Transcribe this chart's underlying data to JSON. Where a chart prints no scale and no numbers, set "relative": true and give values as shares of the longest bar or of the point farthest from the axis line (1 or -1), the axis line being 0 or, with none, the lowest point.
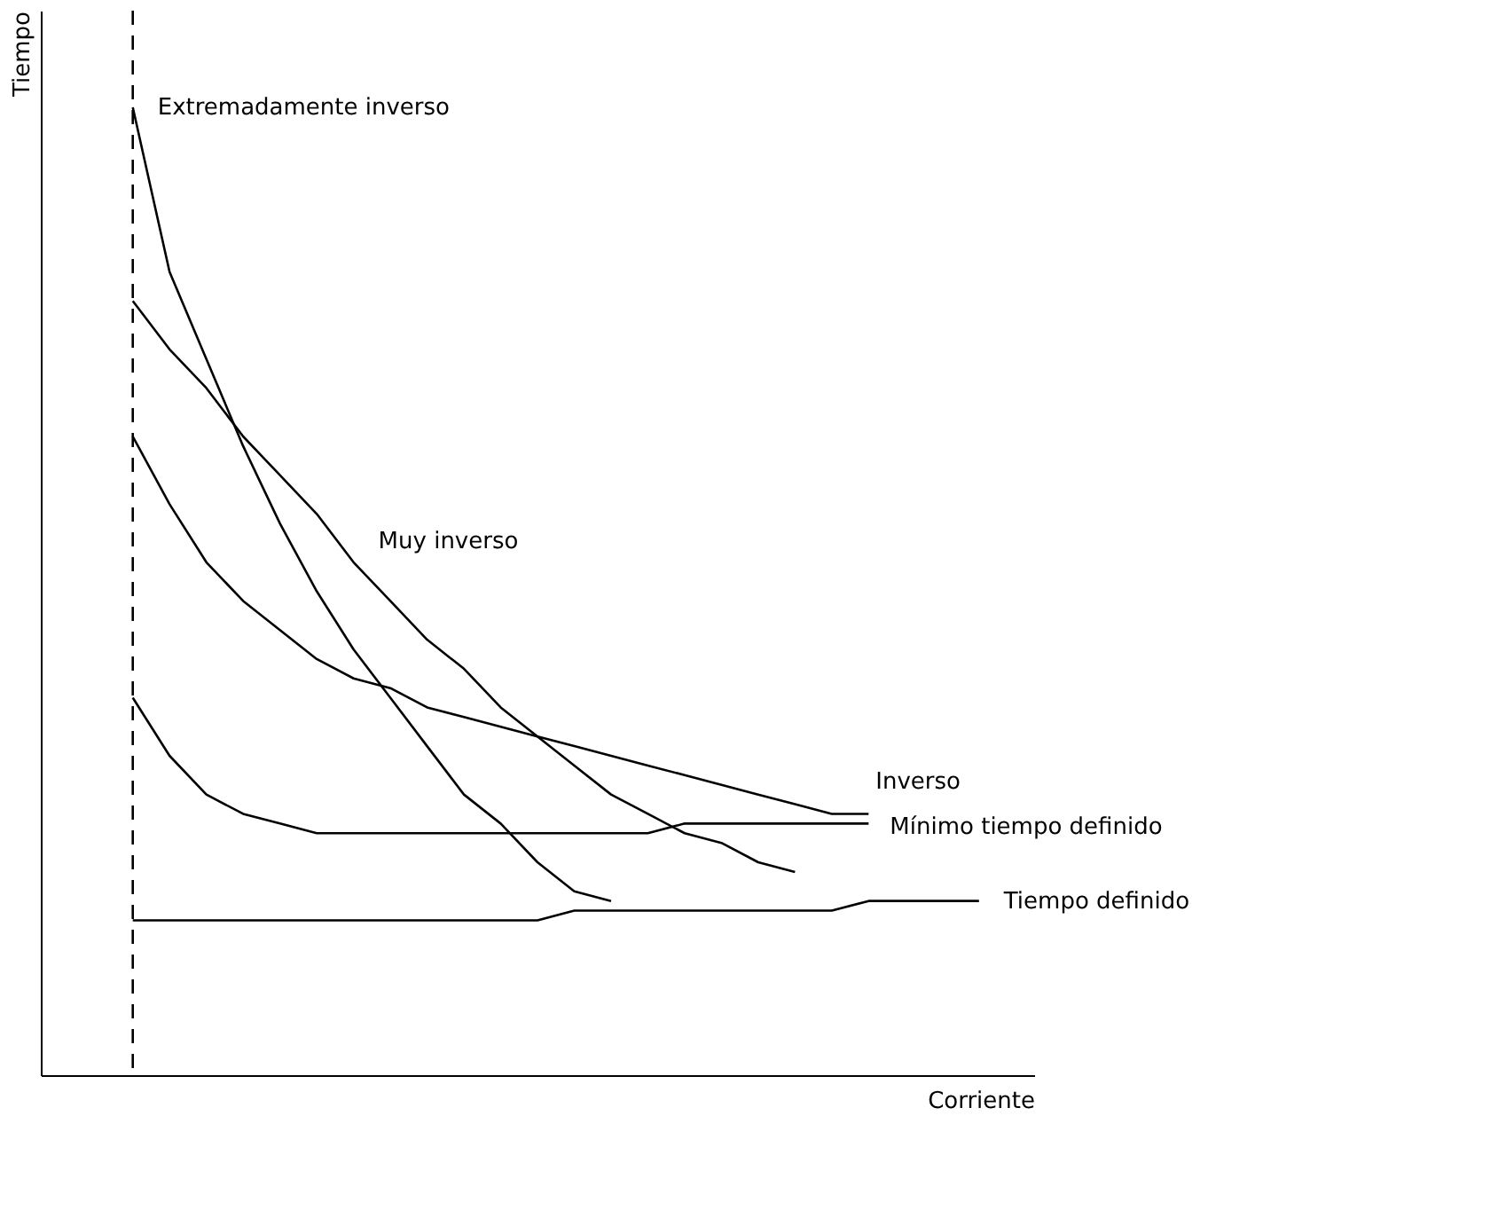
{
  "chart_data": {
    "type": "line",
    "relative": true,
    "xlabel": "Corriente",
    "ylabel": "Tiempo",
    "categories": [
      null,
      null,
      null,
      null,
      null,
      null,
      null,
      null,
      null,
      null,
      null,
      null,
      null,
      null,
      null,
      null,
      null,
      null,
      null,
      null,
      null,
      null,
      null,
      null
    ],
    "series": [
      {
        "name": "Extremadamente inverso",
        "color": "#000000",
        "values": [
          1.0,
          0.83,
          0.74,
          0.65,
          0.57,
          0.5,
          0.44,
          0.39,
          0.34,
          0.29,
          0.26,
          0.22,
          0.19,
          0.18,
          null,
          null,
          null,
          null,
          null,
          null,
          null,
          null,
          null,
          null
        ]
      },
      {
        "name": "Muy inverso",
        "color": "#000000",
        "values": [
          0.8,
          0.75,
          0.71,
          0.66,
          0.62,
          0.58,
          0.53,
          0.49,
          0.45,
          0.42,
          0.38,
          0.35,
          0.32,
          0.29,
          0.27,
          0.25,
          0.24,
          0.22,
          0.21,
          null,
          null,
          null,
          null,
          null
        ]
      },
      {
        "name": "Inverso",
        "color": "#000000",
        "values": [
          0.66,
          0.59,
          0.53,
          0.49,
          0.46,
          0.43,
          0.41,
          0.4,
          0.38,
          0.37,
          0.36,
          0.35,
          0.34,
          0.33,
          0.32,
          0.31,
          0.3,
          0.29,
          0.28,
          0.27,
          0.27,
          null,
          null,
          null
        ]
      },
      {
        "name": "Mínimo tiempo definido",
        "color": "#000000",
        "values": [
          0.39,
          0.33,
          0.29,
          0.27,
          0.26,
          0.25,
          0.25,
          0.25,
          0.25,
          0.25,
          0.25,
          0.25,
          0.25,
          0.25,
          0.25,
          0.26,
          0.26,
          0.26,
          0.26,
          0.26,
          0.26,
          null,
          null,
          null
        ]
      },
      {
        "name": "Tiempo definido",
        "color": "#000000",
        "values": [
          0.16,
          0.16,
          0.16,
          0.16,
          0.16,
          0.16,
          0.16,
          0.16,
          0.16,
          0.16,
          0.16,
          0.16,
          0.17,
          0.17,
          0.17,
          0.17,
          0.17,
          0.17,
          0.17,
          0.17,
          0.18,
          0.18,
          0.18,
          0.18
        ]
      }
    ],
    "ref_lines": [
      {
        "axis": "x",
        "value": null,
        "line_style": "dashed",
        "color": "#000000"
      }
    ],
    "legend": false,
    "grid": false,
    "marker": "none",
    "line_style": "solid"
  }
}
